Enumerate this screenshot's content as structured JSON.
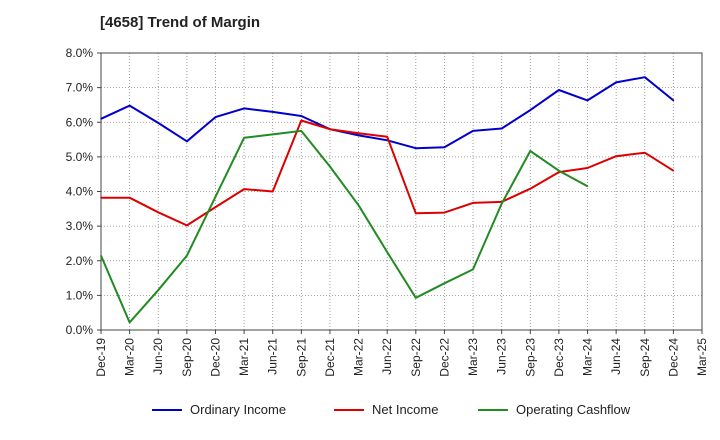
{
  "title": "[4658]  Trend of Margin",
  "chart_data": {
    "type": "line",
    "title": "[4658]  Trend of Margin",
    "xlabel": "",
    "ylabel": "",
    "ylim": [
      0,
      8
    ],
    "y_ticks": [
      "0.0%",
      "1.0%",
      "2.0%",
      "3.0%",
      "4.0%",
      "5.0%",
      "6.0%",
      "7.0%",
      "8.0%"
    ],
    "grid": true,
    "legend_position": "bottom",
    "x": [
      "Dec-19",
      "Mar-20",
      "Jun-20",
      "Sep-20",
      "Dec-20",
      "Mar-21",
      "Jun-21",
      "Sep-21",
      "Dec-21",
      "Mar-22",
      "Jun-22",
      "Sep-22",
      "Dec-22",
      "Mar-23",
      "Jun-23",
      "Sep-23",
      "Dec-23",
      "Mar-24",
      "Jun-24",
      "Sep-24",
      "Dec-24",
      "Mar-25"
    ],
    "series": [
      {
        "name": "Ordinary Income",
        "color": "#0000cc",
        "values": [
          6.1,
          6.48,
          5.98,
          5.45,
          6.15,
          6.4,
          6.3,
          6.18,
          5.8,
          5.62,
          5.48,
          5.25,
          5.28,
          5.75,
          5.82,
          6.35,
          6.93,
          6.63,
          7.15,
          7.3,
          6.63,
          null
        ]
      },
      {
        "name": "Net Income",
        "color": "#dd0000",
        "values": [
          3.82,
          3.82,
          3.4,
          3.02,
          3.55,
          4.07,
          4.0,
          6.05,
          5.8,
          5.68,
          5.58,
          3.37,
          3.39,
          3.67,
          3.7,
          4.08,
          4.56,
          4.68,
          5.02,
          5.12,
          4.6,
          null
        ]
      },
      {
        "name": "Operating Cashflow",
        "color": "#228b22",
        "values": [
          2.15,
          0.22,
          1.15,
          2.15,
          3.85,
          5.55,
          5.65,
          5.75,
          4.72,
          3.6,
          2.25,
          0.93,
          1.35,
          1.75,
          3.65,
          5.17,
          4.6,
          4.15,
          null,
          null,
          null,
          null
        ]
      }
    ]
  }
}
